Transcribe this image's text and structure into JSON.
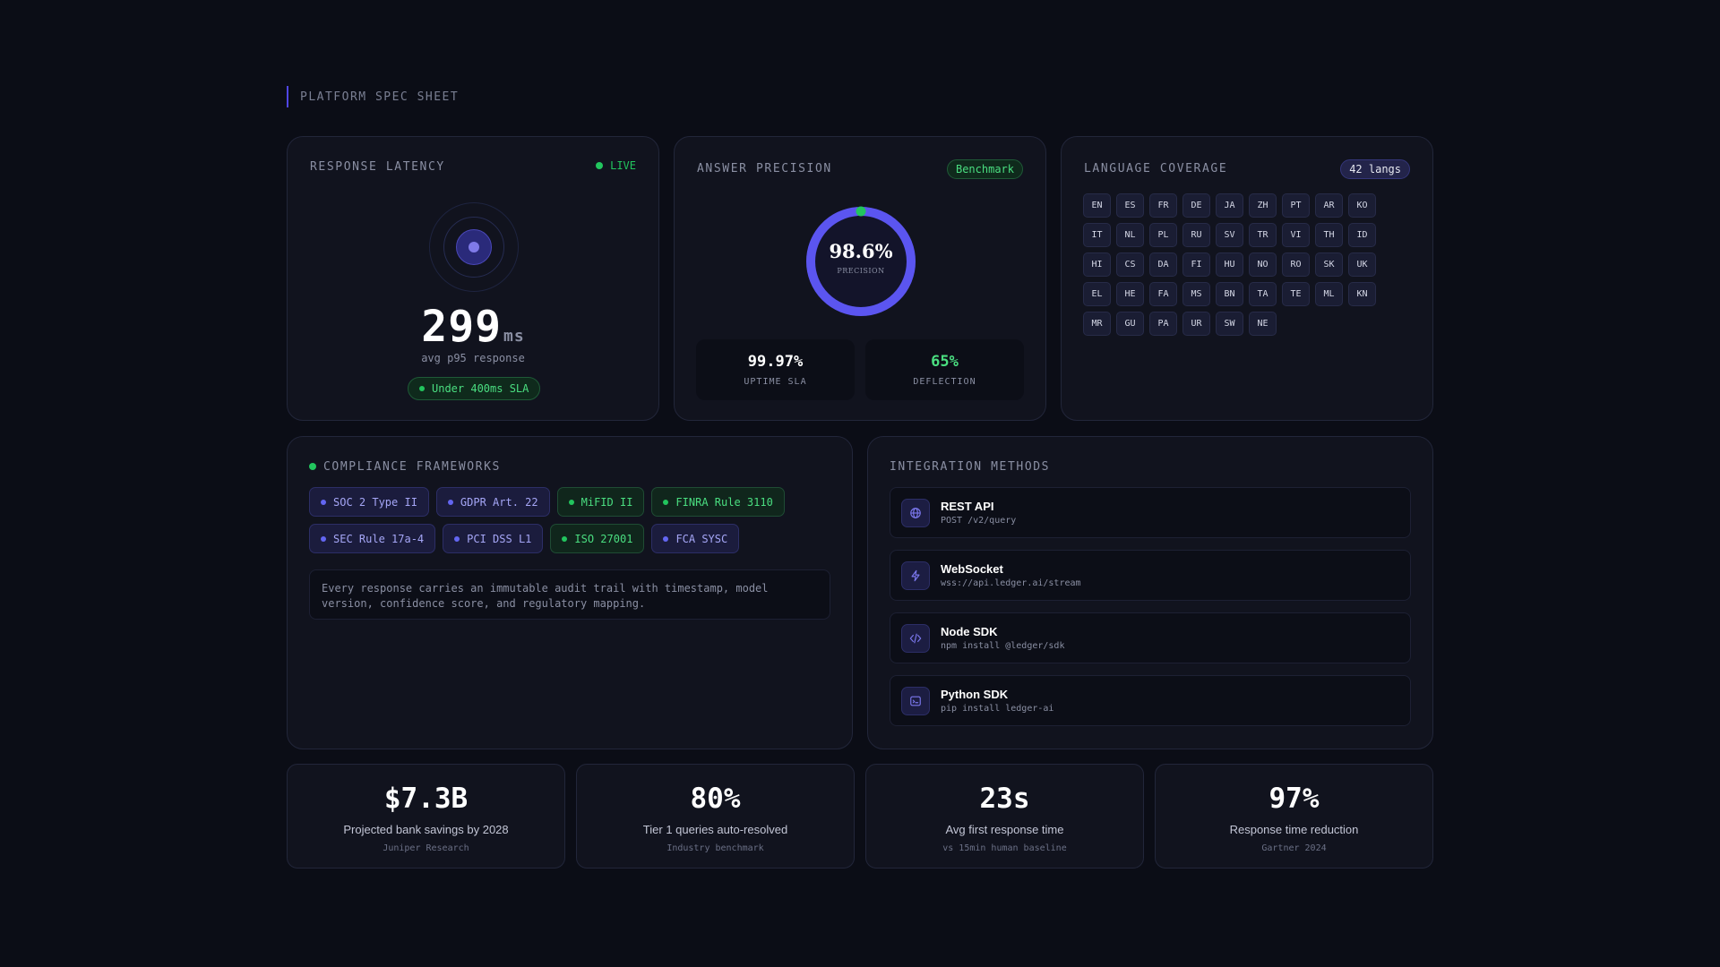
{
  "eyebrow": "PLATFORM SPEC SHEET",
  "latency": {
    "title": "RESPONSE LATENCY",
    "live_label": "LIVE",
    "value": "299",
    "unit": "ms",
    "caption": "avg p95 response",
    "sla_label": "Under 400ms SLA"
  },
  "precision": {
    "title": "ANSWER PRECISION",
    "badge": "Benchmark",
    "value": "98.6%",
    "fraction": 0.986,
    "gauge_label": "PRECISION",
    "uptime": {
      "value": "99.97%",
      "label": "UPTIME SLA"
    },
    "deflection": {
      "value": "65%",
      "label": "DEFLECTION"
    }
  },
  "language": {
    "title": "LANGUAGE COVERAGE",
    "badge": "42 langs",
    "codes": [
      "EN",
      "ES",
      "FR",
      "DE",
      "JA",
      "ZH",
      "PT",
      "AR",
      "KO",
      "IT",
      "NL",
      "PL",
      "RU",
      "SV",
      "TR",
      "VI",
      "TH",
      "ID",
      "HI",
      "CS",
      "DA",
      "FI",
      "HU",
      "NO",
      "RO",
      "SK",
      "UK",
      "EL",
      "HE",
      "FA",
      "MS",
      "BN",
      "TA",
      "TE",
      "ML",
      "KN",
      "MR",
      "GU",
      "PA",
      "UR",
      "SW",
      "NE"
    ]
  },
  "compliance": {
    "title": "COMPLIANCE FRAMEWORKS",
    "chips": [
      {
        "label": "SOC 2 Type II",
        "tone": "indigo"
      },
      {
        "label": "GDPR Art. 22",
        "tone": "indigo"
      },
      {
        "label": "MiFID II",
        "tone": "green"
      },
      {
        "label": "FINRA Rule 3110",
        "tone": "green"
      },
      {
        "label": "SEC Rule 17a-4",
        "tone": "indigo"
      },
      {
        "label": "PCI DSS L1",
        "tone": "indigo"
      },
      {
        "label": "ISO 27001",
        "tone": "green"
      },
      {
        "label": "FCA SYSC",
        "tone": "indigo"
      }
    ],
    "audit_text": "Every response carries an immutable audit trail with timestamp, model version, confidence score, and regulatory mapping."
  },
  "integration": {
    "title": "INTEGRATION METHODS",
    "items": [
      {
        "name": "REST API",
        "detail": "POST /v2/query",
        "icon": "globe-icon"
      },
      {
        "name": "WebSocket",
        "detail": "wss://api.ledger.ai/stream",
        "icon": "lightning-icon"
      },
      {
        "name": "Node SDK",
        "detail": "npm install @ledger/sdk",
        "icon": "code-icon"
      },
      {
        "name": "Python SDK",
        "detail": "pip install ledger-ai",
        "icon": "terminal-icon"
      }
    ]
  },
  "stats": [
    {
      "value": "$7.3B",
      "label": "Projected bank savings by 2028",
      "source": "Juniper Research"
    },
    {
      "value": "80%",
      "label": "Tier 1 queries auto-resolved",
      "source": "Industry benchmark"
    },
    {
      "value": "23s",
      "label": "Avg first response time",
      "source": "vs 15min human baseline"
    },
    {
      "value": "97%",
      "label": "Response time reduction",
      "source": "Gartner 2024"
    }
  ],
  "colors": {
    "background": "#0b0d16",
    "card": "#11131e",
    "accent": "#4f46e5",
    "success": "#22c55e"
  }
}
